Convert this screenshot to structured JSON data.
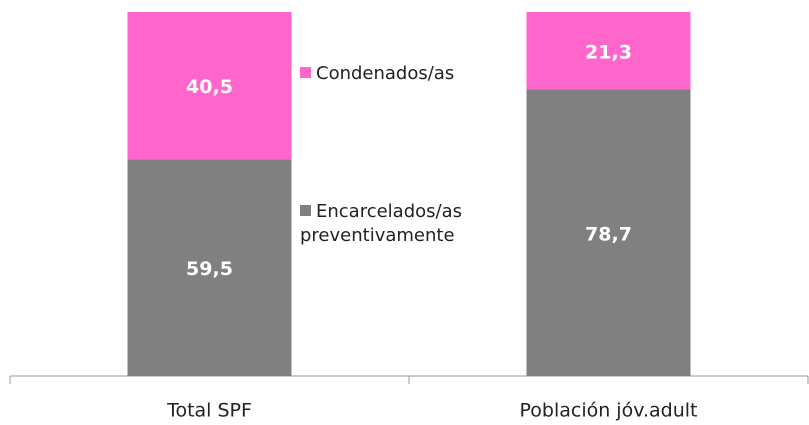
{
  "chart_data": {
    "type": "stacked_bar",
    "categories": [
      "Total SPF",
      "Población jóv.adult"
    ],
    "ylim": [
      0,
      100
    ],
    "series": [
      {
        "name": "Encarcelados/as preventivamente",
        "color": "#808080",
        "values": [
          59.5,
          78.7
        ],
        "value_labels": [
          "59,5",
          "78,7"
        ]
      },
      {
        "name": "Condenados/as",
        "color": "#ff66cc",
        "values": [
          40.5,
          21.3
        ],
        "value_labels": [
          "40,5",
          "21,3"
        ]
      }
    ]
  }
}
